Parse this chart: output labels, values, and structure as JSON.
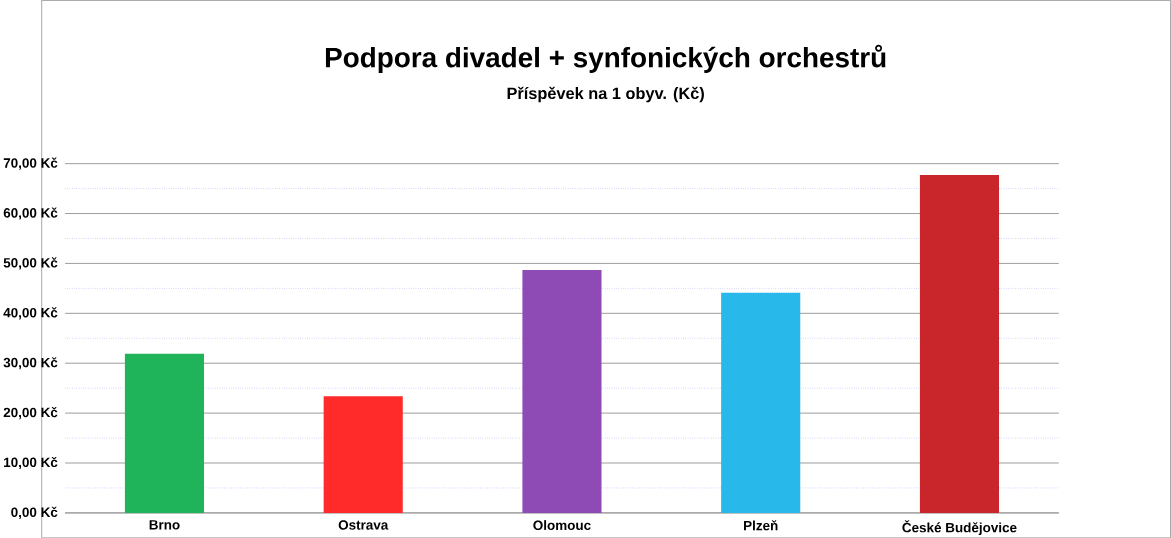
{
  "chart_data": {
    "type": "bar",
    "title": "Podpora divadel + synfonických orchestrů",
    "subtitle": "Příspěvek na 1 obyv. (Kč)",
    "categories": [
      "Brno",
      "Ostrava",
      "Olomouc",
      "Plzeň",
      "České Budějovice"
    ],
    "values": [
      31.9,
      23.4,
      48.7,
      44.1,
      67.7
    ],
    "colors": [
      "#1fb35a",
      "#ff2a2a",
      "#8e4bb5",
      "#29b8ea",
      "#c8262b"
    ],
    "ylim": [
      0,
      70
    ],
    "yticks": [
      {
        "value": 0,
        "label": "0,00 Kč"
      },
      {
        "value": 5,
        "label": null
      },
      {
        "value": 10,
        "label": "10,00 Kč"
      },
      {
        "value": 15,
        "label": null
      },
      {
        "value": 20,
        "label": "20,00 Kč"
      },
      {
        "value": 25,
        "label": null
      },
      {
        "value": 30,
        "label": "30,00 Kč"
      },
      {
        "value": 35,
        "label": null
      },
      {
        "value": 40,
        "label": "40,00 Kč"
      },
      {
        "value": 45,
        "label": null
      },
      {
        "value": 50,
        "label": "50,00 Kč"
      },
      {
        "value": 55,
        "label": null
      },
      {
        "value": 60,
        "label": "60,00 Kč"
      },
      {
        "value": 65,
        "label": null
      },
      {
        "value": 70,
        "label": "70,00 Kč"
      }
    ],
    "grid": "y"
  }
}
